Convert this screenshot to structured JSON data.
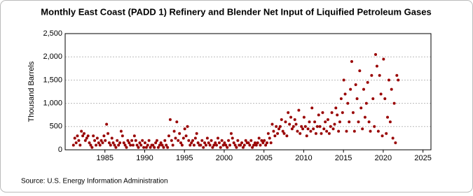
{
  "chart_data": {
    "type": "scatter",
    "title": "Monthly East Coast (PADD 1) Refinery and Blender Net Input of Liquified Petroleum Gases",
    "y_label": "Thousand Barrels",
    "source": "Source: U.S. Energy Information Administration",
    "color": "#990000",
    "grid": true,
    "xlim": [
      1980,
      2026
    ],
    "xticks": [
      1985,
      1990,
      1995,
      2000,
      2005,
      2010,
      2015,
      2020,
      2025
    ],
    "ylim": [
      0,
      2500
    ],
    "yticks": [
      0,
      500,
      {
        "value": 1000,
        "label": "1,000"
      },
      {
        "value": 1500,
        "label": "1,500"
      },
      {
        "value": 2000,
        "label": "2,000"
      },
      {
        "value": 2500,
        "label": "2,500"
      }
    ],
    "x": [
      1981.04,
      1981.21,
      1981.38,
      1981.54,
      1981.71,
      1981.88,
      1982.04,
      1982.21,
      1982.38,
      1982.54,
      1982.71,
      1982.88,
      1983.04,
      1983.21,
      1983.38,
      1983.54,
      1983.71,
      1983.88,
      1984.04,
      1984.21,
      1984.38,
      1984.54,
      1984.71,
      1984.88,
      1985.04,
      1985.21,
      1985.38,
      1985.54,
      1985.71,
      1985.88,
      1986.04,
      1986.21,
      1986.38,
      1986.54,
      1986.71,
      1986.88,
      1987.04,
      1987.21,
      1987.38,
      1987.54,
      1987.71,
      1987.88,
      1988.04,
      1988.21,
      1988.38,
      1988.54,
      1988.71,
      1988.88,
      1989.04,
      1989.21,
      1989.38,
      1989.54,
      1989.71,
      1989.88,
      1990.04,
      1990.21,
      1990.38,
      1990.54,
      1990.71,
      1990.88,
      1991.04,
      1991.21,
      1991.38,
      1991.54,
      1991.71,
      1991.88,
      1992.04,
      1992.21,
      1992.38,
      1992.54,
      1992.71,
      1992.88,
      1993.04,
      1993.21,
      1993.38,
      1993.54,
      1993.71,
      1993.88,
      1994.04,
      1994.21,
      1994.38,
      1994.54,
      1994.71,
      1994.88,
      1995.04,
      1995.21,
      1995.38,
      1995.54,
      1995.71,
      1995.88,
      1996.04,
      1996.21,
      1996.38,
      1996.54,
      1996.71,
      1996.88,
      1997.04,
      1997.21,
      1997.38,
      1997.54,
      1997.71,
      1997.88,
      1998.04,
      1998.21,
      1998.38,
      1998.54,
      1998.71,
      1998.88,
      1999.04,
      1999.21,
      1999.38,
      1999.54,
      1999.71,
      1999.88,
      2000.04,
      2000.21,
      2000.38,
      2000.54,
      2000.71,
      2000.88,
      2001.04,
      2001.21,
      2001.38,
      2001.54,
      2001.71,
      2001.88,
      2002.04,
      2002.21,
      2002.38,
      2002.54,
      2002.71,
      2002.88,
      2003.04,
      2003.21,
      2003.38,
      2003.54,
      2003.71,
      2003.88,
      2004.04,
      2004.21,
      2004.38,
      2004.54,
      2004.71,
      2004.88,
      2005.04,
      2005.21,
      2005.38,
      2005.54,
      2005.71,
      2005.88,
      2006.04,
      2006.21,
      2006.38,
      2006.54,
      2006.71,
      2006.88,
      2007.04,
      2007.21,
      2007.38,
      2007.54,
      2007.71,
      2007.88,
      2008.04,
      2008.21,
      2008.38,
      2008.54,
      2008.71,
      2008.88,
      2009.04,
      2009.21,
      2009.38,
      2009.54,
      2009.71,
      2009.88,
      2010.04,
      2010.21,
      2010.38,
      2010.54,
      2010.71,
      2010.88,
      2011.04,
      2011.21,
      2011.38,
      2011.54,
      2011.71,
      2011.88,
      2012.04,
      2012.21,
      2012.38,
      2012.54,
      2012.71,
      2012.88,
      2013.04,
      2013.21,
      2013.38,
      2013.54,
      2013.71,
      2013.88,
      2014.04,
      2014.21,
      2014.38,
      2014.54,
      2014.71,
      2014.88,
      2015.04,
      2015.21,
      2015.38,
      2015.54,
      2015.71,
      2015.88,
      2016.04,
      2016.21,
      2016.38,
      2016.54,
      2016.71,
      2016.88,
      2017.04,
      2017.21,
      2017.38,
      2017.54,
      2017.71,
      2017.88,
      2018.04,
      2018.21,
      2018.38,
      2018.54,
      2018.71,
      2018.88,
      2019.04,
      2019.21,
      2019.38,
      2019.54,
      2019.71,
      2019.88,
      2020.04,
      2020.21,
      2020.38,
      2020.54,
      2020.71,
      2020.88,
      2021.04,
      2021.21,
      2021.38,
      2021.54,
      2021.71,
      2021.88
    ],
    "values": [
      100,
      250,
      150,
      300,
      200,
      100,
      400,
      300,
      350,
      200,
      250,
      300,
      150,
      100,
      50,
      300,
      200,
      100,
      250,
      150,
      100,
      200,
      150,
      300,
      200,
      550,
      350,
      150,
      100,
      250,
      150,
      100,
      50,
      200,
      100,
      150,
      400,
      300,
      150,
      100,
      50,
      200,
      150,
      100,
      200,
      100,
      300,
      200,
      100,
      50,
      150,
      100,
      200,
      50,
      150,
      50,
      100,
      200,
      50,
      100,
      100,
      50,
      150,
      200,
      50,
      100,
      150,
      100,
      50,
      200,
      100,
      50,
      300,
      650,
      200,
      100,
      400,
      250,
      600,
      200,
      350,
      150,
      100,
      250,
      450,
      300,
      500,
      200,
      100,
      150,
      200,
      100,
      250,
      350,
      150,
      100,
      100,
      200,
      50,
      150,
      100,
      250,
      150,
      100,
      200,
      50,
      100,
      150,
      100,
      250,
      150,
      50,
      200,
      100,
      150,
      100,
      50,
      200,
      100,
      350,
      250,
      150,
      100,
      50,
      200,
      100,
      100,
      150,
      50,
      100,
      200,
      150,
      150,
      100,
      200,
      50,
      100,
      150,
      100,
      150,
      250,
      100,
      200,
      150,
      200,
      100,
      150,
      350,
      250,
      150,
      550,
      400,
      300,
      500,
      350,
      450,
      500,
      650,
      400,
      350,
      600,
      300,
      800,
      550,
      700,
      450,
      500,
      650,
      550,
      400,
      850,
      350,
      500,
      450,
      700,
      500,
      300,
      450,
      600,
      400,
      900,
      450,
      600,
      350,
      500,
      750,
      500,
      350,
      800,
      450,
      600,
      400,
      650,
      350,
      500,
      800,
      450,
      550,
      900,
      750,
      400,
      600,
      1100,
      800,
      1500,
      1200,
      400,
      1000,
      600,
      1300,
      1900,
      800,
      400,
      1400,
      1100,
      600,
      1700,
      900,
      450,
      1300,
      700,
      1000,
      1450,
      600,
      400,
      1600,
      1100,
      500,
      2050,
      1800,
      400,
      1600,
      1200,
      300,
      1950,
      1100,
      350,
      700,
      1500,
      600,
      1300,
      250,
      1000,
      150,
      1600,
      1500
    ]
  }
}
